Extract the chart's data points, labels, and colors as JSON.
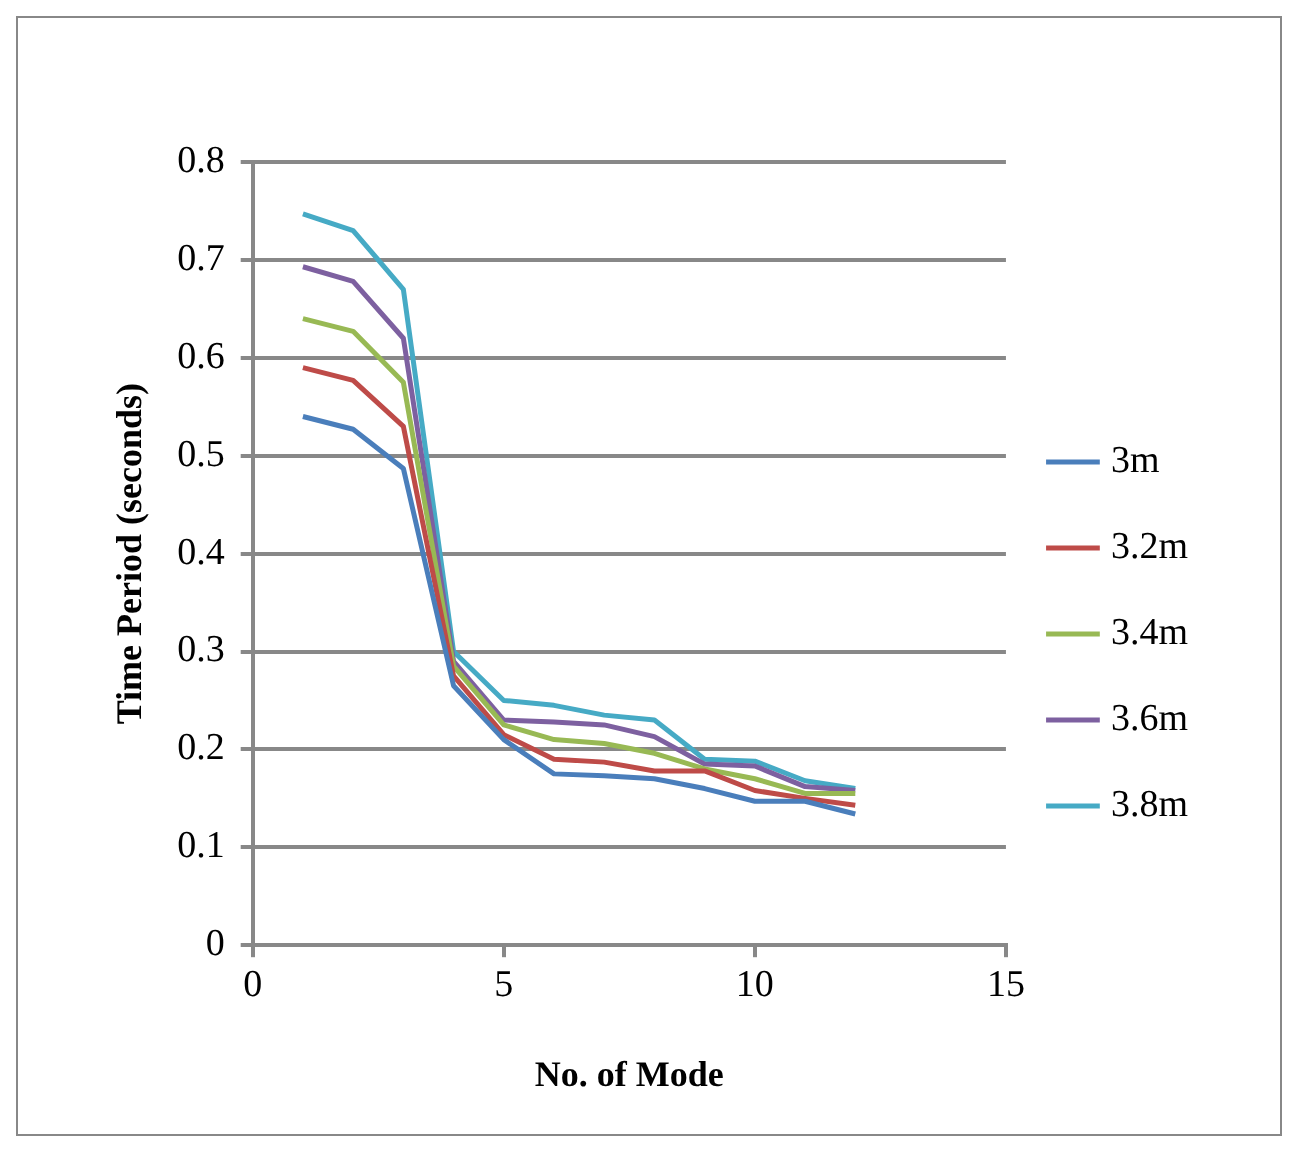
{
  "chart_data": {
    "type": "line",
    "xlabel": "No. of Mode",
    "ylabel": "Time Period (seconds)",
    "x": [
      1,
      2,
      3,
      4,
      5,
      6,
      7,
      8,
      9,
      10,
      11,
      12
    ],
    "series": [
      {
        "name": "3m",
        "color": "#4a7ebb",
        "values": [
          0.54,
          0.527,
          0.487,
          0.265,
          0.21,
          0.175,
          0.173,
          0.17,
          0.16,
          0.147,
          0.147,
          0.134
        ]
      },
      {
        "name": "3.2m",
        "color": "#be4b48",
        "values": [
          0.59,
          0.577,
          0.53,
          0.275,
          0.215,
          0.19,
          0.187,
          0.178,
          0.178,
          0.158,
          0.15,
          0.143
        ]
      },
      {
        "name": "3.4m",
        "color": "#98b954",
        "values": [
          0.64,
          0.627,
          0.575,
          0.285,
          0.225,
          0.21,
          0.206,
          0.196,
          0.18,
          0.17,
          0.155,
          0.155
        ]
      },
      {
        "name": "3.6m",
        "color": "#7d60a0",
        "values": [
          0.693,
          0.678,
          0.62,
          0.29,
          0.23,
          0.228,
          0.225,
          0.213,
          0.185,
          0.183,
          0.162,
          0.158
        ]
      },
      {
        "name": "3.8m",
        "color": "#46aac5",
        "values": [
          0.747,
          0.73,
          0.67,
          0.3,
          0.25,
          0.245,
          0.235,
          0.23,
          0.19,
          0.188,
          0.168,
          0.16
        ]
      }
    ],
    "xlim": [
      0,
      15
    ],
    "xticks": [
      0,
      5,
      10,
      15
    ],
    "ylim": [
      0,
      0.8
    ],
    "yticks": [
      0,
      0.1,
      0.2,
      0.3,
      0.4,
      0.5,
      0.6,
      0.7,
      0.8
    ],
    "grid": "y",
    "legend": "right",
    "marker": "none",
    "line_style": "solid"
  }
}
